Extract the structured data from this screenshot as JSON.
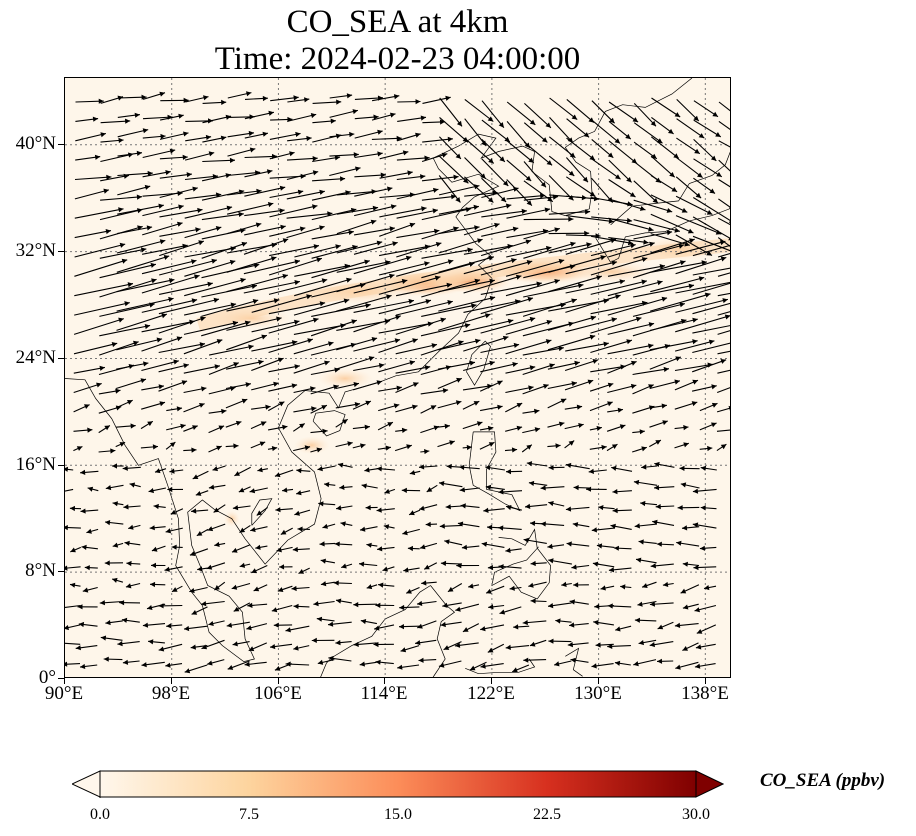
{
  "title": {
    "line1": "CO_SEA at 4km",
    "line2": "Time: 2024-02-23 04:00:00"
  },
  "map": {
    "lon_range": [
      90,
      140
    ],
    "lat_range": [
      0,
      45
    ],
    "x_tick_labels": [
      "90°E",
      "98°E",
      "106°E",
      "114°E",
      "122°E",
      "130°E",
      "138°E"
    ],
    "y_tick_labels": [
      "0°",
      "8°N",
      "16°N",
      "24°N",
      "32°N",
      "40°N"
    ],
    "gridlines": "dotted",
    "background_color": "#fef6ea",
    "coastline_color": "#000000",
    "wind_vector_color": "#000000",
    "plume": "elevated CO band from ~100°E to 140°E near 26–32°N, peak near 117–120°E, 28–30°N"
  },
  "colorbar": {
    "label": "CO_SEA (ppbv)",
    "ticks": [
      "0.0",
      "7.5",
      "15.0",
      "22.5",
      "30.0"
    ],
    "range": [
      0,
      30
    ],
    "colormap": "OrRd",
    "colors": [
      "#fff7ec",
      "#fdd49e",
      "#fc8d59",
      "#d7301f",
      "#7f0000"
    ],
    "extend": "both"
  }
}
